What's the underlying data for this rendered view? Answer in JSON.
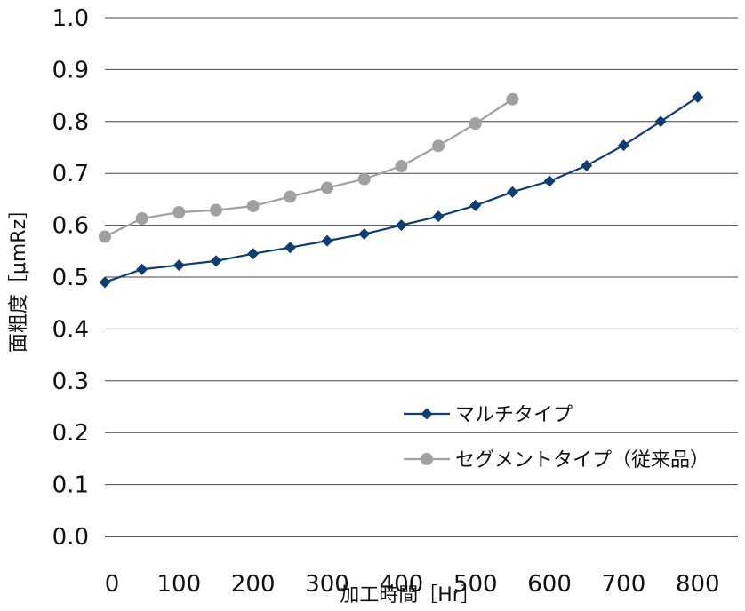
{
  "chart_data": {
    "type": "line",
    "title": "",
    "xlabel": "加工時間［Hr］",
    "ylabel": "面粗度［μmRz］",
    "xlim": [
      -10,
      850
    ],
    "ylim": [
      0.0,
      1.0
    ],
    "x_ticks": [
      "0",
      "100",
      "200",
      "300",
      "400",
      "500",
      "600",
      "700",
      "800"
    ],
    "y_ticks": [
      "0.0",
      "0.1",
      "0.2",
      "0.3",
      "0.4",
      "0.5",
      "0.6",
      "0.7",
      "0.8",
      "0.9",
      "1.0"
    ],
    "grid": true,
    "legend_position": "bottom-right",
    "series": [
      {
        "name": "マルチタイプ",
        "color": "#0e3d73",
        "marker": "diamond",
        "x": [
          0,
          50,
          100,
          150,
          200,
          250,
          300,
          350,
          400,
          450,
          500,
          550,
          600,
          650,
          700,
          750,
          800
        ],
        "y": [
          0.49,
          0.515,
          0.523,
          0.531,
          0.545,
          0.557,
          0.57,
          0.583,
          0.6,
          0.617,
          0.638,
          0.664,
          0.685,
          0.715,
          0.754,
          0.8,
          0.847
        ]
      },
      {
        "name": "セグメントタイプ（従来品）",
        "color": "#a0a0a0",
        "marker": "circle",
        "x": [
          0,
          50,
          100,
          150,
          200,
          250,
          300,
          350,
          400,
          450,
          500,
          550
        ],
        "y": [
          0.578,
          0.613,
          0.625,
          0.629,
          0.637,
          0.655,
          0.672,
          0.689,
          0.714,
          0.753,
          0.796,
          0.843
        ]
      }
    ]
  }
}
